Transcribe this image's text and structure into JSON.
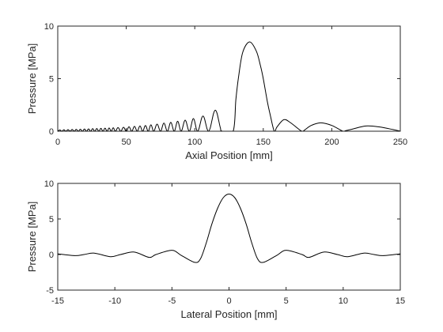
{
  "colors": {
    "line": "#000000",
    "axes": "#262626",
    "background": "#ffffff"
  },
  "chart_data": [
    {
      "type": "line",
      "title": "",
      "xlabel": "Axial Position [mm]",
      "ylabel": "Pressure [MPa]",
      "xlim": [
        0,
        250
      ],
      "ylim": [
        0,
        10
      ],
      "xticks": [
        0,
        50,
        100,
        150,
        200,
        250
      ],
      "yticks": [
        0,
        5,
        10
      ],
      "grid": false,
      "series": [
        {
          "x": [
            0,
            120,
            128,
            130,
            132,
            135,
            140,
            145,
            148,
            150,
            153,
            155,
            158,
            160,
            165,
            170,
            178,
            180,
            185,
            192,
            200,
            208,
            210,
            215,
            225,
            235,
            245,
            250
          ],
          "y": [
            0.1,
            2.0,
            0.0,
            3.0,
            5.2,
            7.5,
            8.5,
            7.6,
            6.2,
            5.0,
            2.8,
            1.6,
            0.0,
            0.4,
            1.1,
            0.8,
            0.0,
            0.1,
            0.55,
            0.8,
            0.55,
            0.0,
            0.05,
            0.2,
            0.5,
            0.4,
            0.15,
            0.0
          ],
          "ripple_peaks": [
            [
              3,
              0.12
            ],
            [
              6,
              0.14
            ],
            [
              9,
              0.15
            ],
            [
              12,
              0.17
            ],
            [
              15,
              0.18
            ],
            [
              18,
              0.19
            ],
            [
              21,
              0.21
            ],
            [
              24,
              0.22
            ],
            [
              27,
              0.24
            ],
            [
              30,
              0.25
            ],
            [
              33,
              0.27
            ],
            [
              36,
              0.29
            ],
            [
              39,
              0.31
            ],
            [
              42,
              0.33
            ],
            [
              46,
              0.35
            ],
            [
              50,
              0.38
            ],
            [
              54,
              0.42
            ],
            [
              58,
              0.46
            ],
            [
              62,
              0.5
            ],
            [
              66,
              0.55
            ],
            [
              70,
              0.61
            ],
            [
              75,
              0.68
            ],
            [
              80,
              0.78
            ],
            [
              85,
              0.85
            ],
            [
              90,
              0.95
            ],
            [
              96,
              1.05
            ],
            [
              102,
              1.2
            ],
            [
              110,
              1.45
            ],
            [
              120,
              2.0
            ]
          ]
        }
      ]
    },
    {
      "type": "line",
      "title": "",
      "xlabel": "Lateral Position [mm]",
      "ylabel": "Pressure [MPa]",
      "xlim": [
        -15,
        15
      ],
      "ylim": [
        -5,
        10
      ],
      "xticks": [
        -15,
        -10,
        -5,
        0,
        5,
        10,
        15
      ],
      "yticks": [
        -5,
        0,
        5,
        10
      ],
      "grid": false,
      "series": [
        {
          "x": [
            -15,
            -13.5,
            -12.7,
            -11.8,
            -10.4,
            -9.5,
            -8.3,
            -7.0,
            -6.4,
            -5.0,
            -4.2,
            -3.0,
            -2.5,
            -2.0,
            -1.5,
            -1.0,
            -0.5,
            0,
            0.5,
            1.0,
            1.5,
            2.0,
            2.5,
            3.0,
            4.2,
            5.0,
            6.4,
            7.0,
            8.3,
            9.5,
            10.4,
            11.8,
            12.7,
            13.5,
            15
          ],
          "y": [
            0.1,
            -0.15,
            0.0,
            0.2,
            -0.3,
            0.0,
            0.35,
            -0.4,
            0.0,
            0.6,
            -0.1,
            -1.1,
            -0.6,
            1.6,
            4.3,
            6.5,
            8.0,
            8.5,
            8.0,
            6.5,
            4.3,
            1.6,
            -0.6,
            -1.1,
            -0.1,
            0.6,
            0.0,
            -0.4,
            0.35,
            0.0,
            -0.3,
            0.2,
            0.0,
            -0.15,
            0.1
          ]
        }
      ]
    }
  ]
}
